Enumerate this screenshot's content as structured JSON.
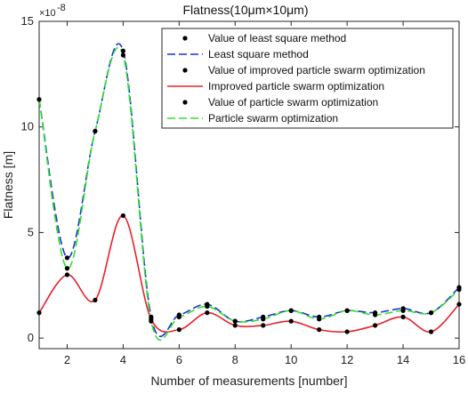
{
  "chart_data": {
    "type": "line",
    "title": "Flatness(10μm×10μm)",
    "xlabel": "Number of measurements [number]",
    "ylabel": "Flatness [m]",
    "y_exponent_base": "×10",
    "y_exponent_power": "-8",
    "xlim": [
      1,
      16
    ],
    "ylim": [
      -0.5,
      15
    ],
    "xticks": [
      2,
      4,
      6,
      8,
      10,
      12,
      14,
      16
    ],
    "yticks": [
      0,
      5,
      10,
      15
    ],
    "grid": false,
    "legend_position": "top-right",
    "x": [
      1,
      2,
      3,
      4,
      5,
      6,
      7,
      8,
      9,
      10,
      11,
      12,
      13,
      14,
      15,
      16
    ],
    "series": [
      {
        "name": "Value of least square method",
        "kind": "points",
        "color": "#000000",
        "values": [
          11.3,
          3.8,
          9.8,
          13.6,
          1.0,
          1.1,
          1.6,
          0.8,
          1.0,
          1.3,
          1.0,
          1.3,
          1.2,
          1.4,
          1.2,
          2.4
        ]
      },
      {
        "name": "Least square method",
        "kind": "curve",
        "color": "#1f2fd6",
        "dash": "dashed",
        "values": [
          11.3,
          3.8,
          9.8,
          13.6,
          1.0,
          1.1,
          1.6,
          0.8,
          1.0,
          1.3,
          1.0,
          1.3,
          1.2,
          1.4,
          1.2,
          2.4
        ]
      },
      {
        "name": "Value of improved particle swarm optimization",
        "kind": "points",
        "color": "#000000",
        "values": [
          1.2,
          3.0,
          1.8,
          5.8,
          0.9,
          0.4,
          1.2,
          0.6,
          0.6,
          0.8,
          0.4,
          0.3,
          0.6,
          1.0,
          0.3,
          1.6
        ]
      },
      {
        "name": "Improved particle swarm optimization",
        "kind": "curve",
        "color": "#e8202a",
        "dash": "solid",
        "values": [
          1.2,
          3.0,
          1.8,
          5.8,
          0.9,
          0.4,
          1.2,
          0.6,
          0.6,
          0.8,
          0.4,
          0.3,
          0.6,
          1.0,
          0.3,
          1.6
        ]
      },
      {
        "name": "Value of particle swarm optimization",
        "kind": "points",
        "color": "#000000",
        "values": [
          11.3,
          3.3,
          9.8,
          13.4,
          0.8,
          1.0,
          1.5,
          0.8,
          0.9,
          1.3,
          0.9,
          1.3,
          1.1,
          1.3,
          1.2,
          2.3
        ]
      },
      {
        "name": "Particle swarm optimization",
        "kind": "curve",
        "color": "#2fe02f",
        "dash": "dashed",
        "values": [
          11.3,
          3.3,
          9.8,
          13.4,
          0.8,
          1.0,
          1.5,
          0.8,
          0.9,
          1.3,
          0.9,
          1.3,
          1.1,
          1.3,
          1.2,
          2.3
        ]
      }
    ]
  }
}
